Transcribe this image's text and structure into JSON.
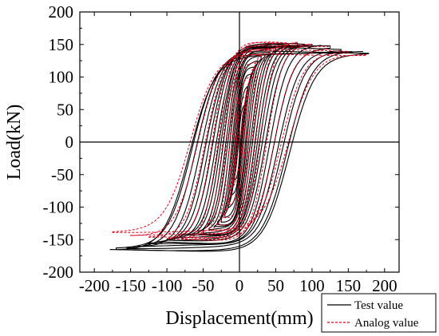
{
  "chart_data": {
    "type": "line",
    "xlabel": "Displacement(mm)",
    "ylabel": "Load(kN)",
    "xlim": [
      -220,
      220
    ],
    "ylim": [
      -200,
      200
    ],
    "x_ticks": [
      -200,
      -150,
      -100,
      -50,
      0,
      50,
      100,
      150,
      200
    ],
    "y_ticks": [
      -200,
      -150,
      -100,
      -50,
      0,
      50,
      100,
      150,
      200
    ],
    "x_tick_labels": [
      "-200",
      "-150",
      "-100",
      "-50",
      "0",
      "50",
      "100",
      "150",
      "200"
    ],
    "y_tick_labels": [
      "-200",
      "-150",
      "-100",
      "-50",
      "0",
      "50",
      "100",
      "150",
      "200"
    ],
    "grid": false,
    "zero_lines": true,
    "legend_position": "bottom-right",
    "series": [
      {
        "name": "Test value",
        "color": "#000000",
        "style": "solid",
        "loops": [
          {
            "amp": 8,
            "peak_pos": 60,
            "peak_neg": -60,
            "pinch": 0.9
          },
          {
            "amp": 12,
            "peak_pos": 85,
            "peak_neg": -85,
            "pinch": 0.85
          },
          {
            "amp": 16,
            "peak_pos": 105,
            "peak_neg": -103,
            "pinch": 0.8
          },
          {
            "amp": 20,
            "peak_pos": 118,
            "peak_neg": -115,
            "pinch": 0.7
          },
          {
            "amp": 25,
            "peak_pos": 125,
            "peak_neg": -122,
            "pinch": 0.6
          },
          {
            "amp": 30,
            "peak_pos": 130,
            "peak_neg": -128,
            "pinch": 0.5
          },
          {
            "amp": 35,
            "peak_pos": 135,
            "peak_neg": -132,
            "pinch": 0.45
          },
          {
            "amp": 42,
            "peak_pos": 140,
            "peak_neg": -135,
            "pinch": 0.4
          },
          {
            "amp": 50,
            "peak_pos": 143,
            "peak_neg": -138,
            "pinch": 0.35
          },
          {
            "amp": 57,
            "peak_pos": 145,
            "peak_neg": -140,
            "pinch": 0.3
          },
          {
            "amp": 64,
            "peak_pos": 147,
            "peak_neg": -142,
            "pinch": 0.25
          },
          {
            "amp": 72,
            "peak_pos": 149,
            "peak_neg": -145,
            "pinch": 0.22
          },
          {
            "amp": 80,
            "peak_pos": 150,
            "peak_neg": -147,
            "pinch": 0.2
          },
          {
            "amp": 90,
            "peak_pos": 150,
            "peak_neg": -149,
            "pinch": 0.18
          },
          {
            "amp": 100,
            "peak_pos": 150,
            "peak_neg": -150,
            "pinch": 0.15
          },
          {
            "amp": 112,
            "peak_pos": 148,
            "peak_neg": -155,
            "pinch": 0.12
          },
          {
            "amp": 125,
            "peak_pos": 146,
            "peak_neg": -158,
            "pinch": 0.1
          },
          {
            "amp": 140,
            "peak_pos": 143,
            "peak_neg": -160,
            "pinch": 0.08
          },
          {
            "amp": 155,
            "peak_pos": 140,
            "peak_neg": -162,
            "pinch": 0.06
          },
          {
            "amp": 170,
            "peak_pos": 138,
            "peak_neg": -165,
            "pinch": 0.05
          },
          {
            "amp": 178,
            "peak_pos": 135,
            "peak_neg": -167,
            "pinch": 0.05
          }
        ]
      },
      {
        "name": "Analog value",
        "color": "#e3001b",
        "style": "dashed",
        "loops": [
          {
            "amp": 10,
            "peak_pos": 75,
            "peak_neg": -70,
            "pinch": 0.8
          },
          {
            "amp": 15,
            "peak_pos": 100,
            "peak_neg": -95,
            "pinch": 0.6
          },
          {
            "amp": 22,
            "peak_pos": 120,
            "peak_neg": -115,
            "pinch": 0.5
          },
          {
            "amp": 30,
            "peak_pos": 135,
            "peak_neg": -128,
            "pinch": 0.4
          },
          {
            "amp": 40,
            "peak_pos": 145,
            "peak_neg": -138,
            "pinch": 0.3
          },
          {
            "amp": 52,
            "peak_pos": 150,
            "peak_neg": -143,
            "pinch": 0.25
          },
          {
            "amp": 65,
            "peak_pos": 152,
            "peak_neg": -146,
            "pinch": 0.2
          },
          {
            "amp": 80,
            "peak_pos": 153,
            "peak_neg": -148,
            "pinch": 0.15
          },
          {
            "amp": 100,
            "peak_pos": 150,
            "peak_neg": -150,
            "pinch": 0.1
          },
          {
            "amp": 125,
            "peak_pos": 145,
            "peak_neg": -148,
            "pinch": 0.08
          },
          {
            "amp": 150,
            "peak_pos": 140,
            "peak_neg": -143,
            "pinch": 0.06
          },
          {
            "amp": 175,
            "peak_pos": 135,
            "peak_neg": -137,
            "pinch": 0.05
          }
        ]
      }
    ]
  }
}
